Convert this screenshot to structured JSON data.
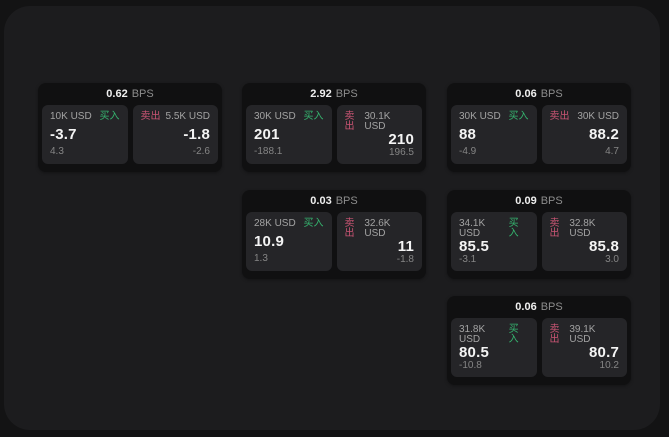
{
  "theme": {
    "page_bg": "#131314",
    "surface_bg": "#1c1c1e",
    "card_bg": "#101011",
    "panel_bg": "#252528",
    "text_primary": "#f4f4f4",
    "text_secondary": "#a3a3a3",
    "text_muted": "#858585",
    "buy_color": "#35b56f",
    "sell_color": "#cb5574"
  },
  "cards": [
    {
      "bps_value": "0.62",
      "bps_unit": "BPS",
      "buy": {
        "amount": "10K USD",
        "side_label": "买入",
        "price": "-3.7",
        "change": "4.3"
      },
      "sell": {
        "side_label": "卖出",
        "amount": "5.5K USD",
        "price": "-1.8",
        "change": "-2.6"
      }
    },
    {
      "bps_value": "2.92",
      "bps_unit": "BPS",
      "buy": {
        "amount": "30K USD",
        "side_label": "买入",
        "price": "201",
        "change": "-188.1"
      },
      "sell": {
        "side_label": "卖出",
        "amount": "30.1K USD",
        "price": "210",
        "change": "196.5"
      }
    },
    {
      "bps_value": "0.06",
      "bps_unit": "BPS",
      "buy": {
        "amount": "30K USD",
        "side_label": "买入",
        "price": "88",
        "change": "-4.9"
      },
      "sell": {
        "side_label": "卖出",
        "amount": "30K USD",
        "price": "88.2",
        "change": "4.7"
      }
    },
    {
      "bps_value": "0.03",
      "bps_unit": "BPS",
      "buy": {
        "amount": "28K USD",
        "side_label": "买入",
        "price": "10.9",
        "change": "1.3"
      },
      "sell": {
        "side_label": "卖出",
        "amount": "32.6K USD",
        "price": "11",
        "change": "-1.8"
      }
    },
    {
      "bps_value": "0.09",
      "bps_unit": "BPS",
      "buy": {
        "amount": "34.1K USD",
        "side_label": "买入",
        "price": "85.5",
        "change": "-3.1"
      },
      "sell": {
        "side_label": "卖出",
        "amount": "32.8K USD",
        "price": "85.8",
        "change": "3.0"
      }
    },
    {
      "bps_value": "0.06",
      "bps_unit": "BPS",
      "buy": {
        "amount": "31.8K USD",
        "side_label": "买入",
        "price": "80.5",
        "change": "-10.8"
      },
      "sell": {
        "side_label": "卖出",
        "amount": "39.1K USD",
        "price": "80.7",
        "change": "10.2"
      }
    }
  ]
}
